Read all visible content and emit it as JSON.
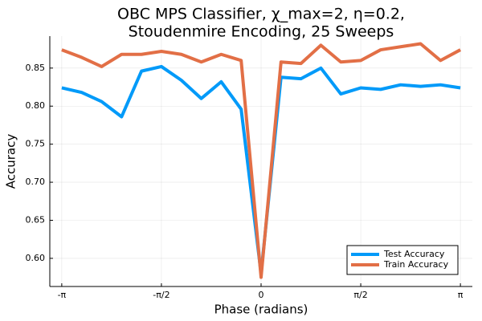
{
  "chart_data": {
    "type": "line",
    "title": [
      "OBC MPS Classifier, χ_max=2, η=0.2,",
      "Stoudenmire Encoding, 25 Sweeps"
    ],
    "x_label": "Phase (radians)",
    "y_label": "Accuracy",
    "x": [
      -3.1416,
      -2.8274,
      -2.5133,
      -2.1991,
      -1.885,
      -1.5708,
      -1.2566,
      -0.9425,
      -0.6283,
      -0.3142,
      0,
      0.3142,
      0.6283,
      0.9425,
      1.2566,
      1.5708,
      1.885,
      2.1991,
      2.5133,
      2.8274,
      3.1416
    ],
    "series": [
      {
        "name": "Test Accuracy",
        "color": "#009af9",
        "values": [
          0.824,
          0.818,
          0.806,
          0.786,
          0.846,
          0.852,
          0.834,
          0.81,
          0.832,
          0.796,
          0.58,
          0.838,
          0.836,
          0.85,
          0.816,
          0.824,
          0.822,
          0.828,
          0.826,
          0.828,
          0.824
        ]
      },
      {
        "name": "Train Accuracy",
        "color": "#e26f46",
        "values": [
          0.874,
          0.864,
          0.852,
          0.868,
          0.868,
          0.872,
          0.868,
          0.858,
          0.868,
          0.86,
          0.575,
          0.858,
          0.856,
          0.88,
          0.858,
          0.86,
          0.874,
          0.878,
          0.882,
          0.86,
          0.874
        ]
      }
    ],
    "xlim": [
      -3.33,
      3.33
    ],
    "xticks": [
      {
        "value": -3.1416,
        "label": "-π"
      },
      {
        "value": -1.5708,
        "label": "-π/2"
      },
      {
        "value": 0,
        "label": "0"
      },
      {
        "value": 1.5708,
        "label": "π/2"
      },
      {
        "value": 3.1416,
        "label": "π"
      }
    ],
    "ylim": [
      0.563,
      0.892
    ],
    "yticks": [
      {
        "value": 0.6,
        "label": "0.60"
      },
      {
        "value": 0.65,
        "label": "0.65"
      },
      {
        "value": 0.7,
        "label": "0.70"
      },
      {
        "value": 0.75,
        "label": "0.75"
      },
      {
        "value": 0.8,
        "label": "0.80"
      },
      {
        "value": 0.85,
        "label": "0.85"
      }
    ],
    "grid": true,
    "legend": "lower-right"
  }
}
